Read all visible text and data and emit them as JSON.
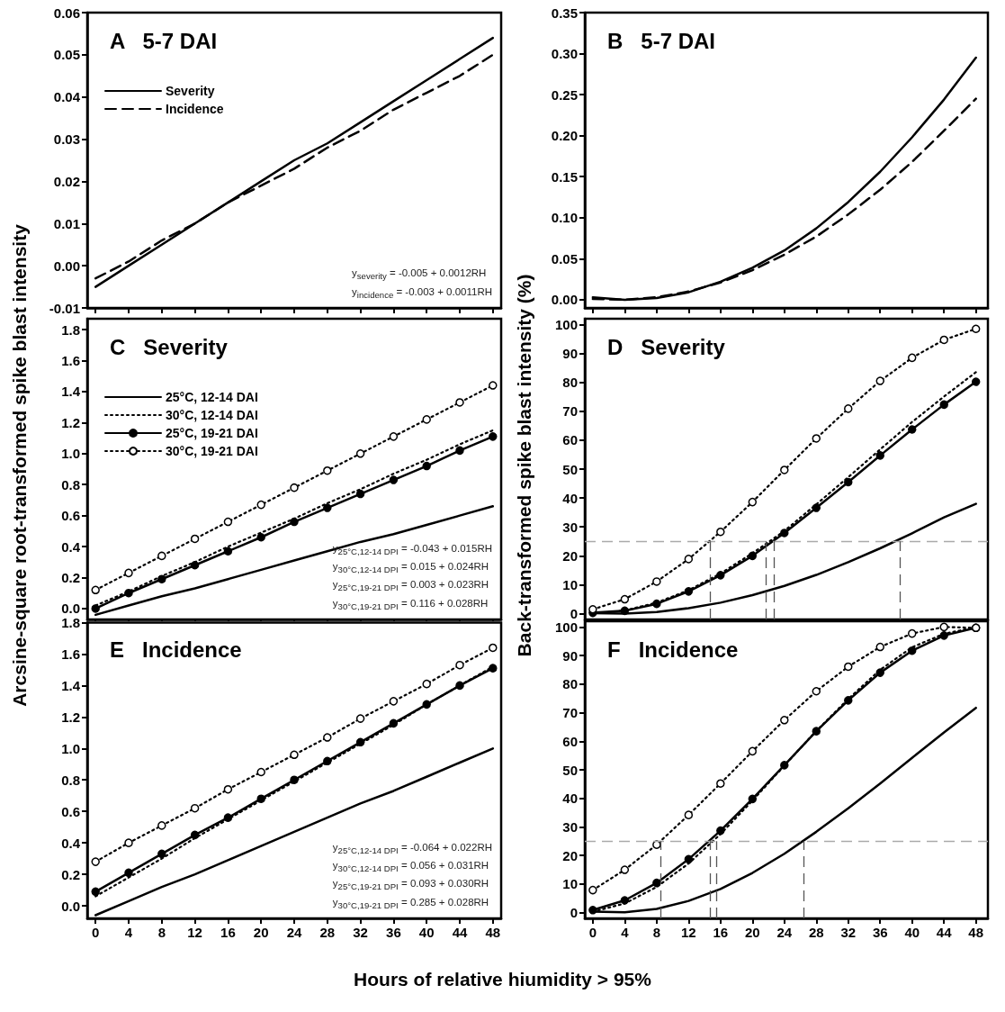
{
  "chart_data": [
    {
      "type": "line",
      "title": "A   5-7 DAI",
      "xlim": [
        -1,
        49
      ],
      "xticks": [
        0,
        4,
        8,
        12,
        16,
        20,
        24,
        28,
        32,
        36,
        40,
        44,
        48
      ],
      "ylim": [
        -0.01,
        0.06
      ],
      "yticks": [
        {
          "value": -0.01,
          "label": "-0.01"
        },
        {
          "value": 0,
          "label": "0.00"
        },
        {
          "value": 0.01,
          "label": "0.01"
        },
        {
          "value": 0.02,
          "label": "0.02"
        },
        {
          "value": 0.03,
          "label": "0.03"
        },
        {
          "value": 0.04,
          "label": "0.04"
        },
        {
          "value": 0.05,
          "label": "0.05"
        },
        {
          "value": 0.06,
          "label": "0.06"
        }
      ],
      "tick_labels": "y",
      "legend": "top left",
      "marker": "none",
      "x": [
        0,
        4,
        8,
        12,
        16,
        20,
        24,
        28,
        32,
        36,
        40,
        44,
        48
      ],
      "series": [
        {
          "name": "Severity",
          "color": "#000000",
          "line_style": "solid",
          "values": [
            -0.005,
            0.0,
            0.005,
            0.01,
            0.015,
            0.02,
            0.025,
            0.029,
            0.034,
            0.039,
            0.044,
            0.049,
            0.054
          ]
        },
        {
          "name": "Incidence",
          "color": "#000000",
          "line_style": "dashed",
          "values": [
            -0.003,
            0.001,
            0.006,
            0.01,
            0.015,
            0.019,
            0.023,
            0.028,
            0.032,
            0.037,
            0.041,
            0.045,
            0.05
          ]
        }
      ],
      "annotations": [
        "y$_{severity}$ = -0.005 + 0.0012RH",
        "y$_{incidence}$ = -0.003 + 0.0011RH"
      ]
    },
    {
      "type": "line",
      "title": "B   5-7 DAI",
      "xlim": [
        -1,
        49.5
      ],
      "xticks": [
        0,
        4,
        8,
        12,
        16,
        20,
        24,
        28,
        32,
        36,
        40,
        44,
        48
      ],
      "ylim": [
        -0.01,
        0.35
      ],
      "yticks": [
        {
          "value": 0,
          "label": "0.00"
        },
        {
          "value": 0.05,
          "label": "0.05"
        },
        {
          "value": 0.1,
          "label": "0.10"
        },
        {
          "value": 0.15,
          "label": "0.15"
        },
        {
          "value": 0.2,
          "label": "0.20"
        },
        {
          "value": 0.25,
          "label": "0.25"
        },
        {
          "value": 0.3,
          "label": "0.30"
        },
        {
          "value": 0.35,
          "label": "0.35"
        }
      ],
      "tick_labels": "y",
      "marker": "none",
      "x": [
        0,
        4,
        8,
        12,
        16,
        20,
        24,
        28,
        32,
        36,
        40,
        44,
        48
      ],
      "series": [
        {
          "color": "#000000",
          "line_style": "solid",
          "values": [
            0.003,
            0.0,
            0.002,
            0.009,
            0.022,
            0.039,
            0.06,
            0.087,
            0.119,
            0.156,
            0.198,
            0.244,
            0.295
          ]
        },
        {
          "color": "#000000",
          "line_style": "dashed",
          "values": [
            0.001,
            0.0,
            0.003,
            0.01,
            0.021,
            0.036,
            0.055,
            0.077,
            0.104,
            0.134,
            0.168,
            0.206,
            0.245
          ]
        }
      ]
    },
    {
      "type": "line",
      "title": "C   Severity",
      "xlim": [
        -1,
        49
      ],
      "xticks": [
        0,
        4,
        8,
        12,
        16,
        20,
        24,
        28,
        32,
        36,
        40,
        44,
        48
      ],
      "ylim": [
        -0.07,
        1.87
      ],
      "yticks": [
        {
          "value": 0,
          "label": "0.0"
        },
        {
          "value": 0.2,
          "label": "0.2"
        },
        {
          "value": 0.4,
          "label": "0.4"
        },
        {
          "value": 0.6,
          "label": "0.6"
        },
        {
          "value": 0.8,
          "label": "0.8"
        },
        {
          "value": 1,
          "label": "1.0"
        },
        {
          "value": 1.2,
          "label": "1.2"
        },
        {
          "value": 1.4,
          "label": "1.4"
        },
        {
          "value": 1.6,
          "label": "1.6"
        },
        {
          "value": 1.8,
          "label": "1.8"
        }
      ],
      "tick_labels": "y",
      "legend": "top left",
      "x": [
        0,
        4,
        8,
        12,
        16,
        20,
        24,
        28,
        32,
        36,
        40,
        44,
        48
      ],
      "ylabel": "Arcsine-square root-transformed spike blast intensity",
      "series": [
        {
          "name": "25°C, 12-14 DAI",
          "color": "#000000",
          "line_style": "solid",
          "marker": "none",
          "values": [
            -0.04,
            0.02,
            0.08,
            0.13,
            0.19,
            0.25,
            0.31,
            0.37,
            0.43,
            0.48,
            0.54,
            0.6,
            0.66
          ]
        },
        {
          "name": "30°C, 12-14 DAI",
          "color": "#000000",
          "line_style": "dotted",
          "marker": "none",
          "values": [
            0.02,
            0.11,
            0.21,
            0.3,
            0.4,
            0.49,
            0.58,
            0.68,
            0.77,
            0.87,
            0.96,
            1.06,
            1.15
          ]
        },
        {
          "name": "25°C, 19-21 DAI",
          "color": "#000000",
          "line_style": "solid",
          "marker": "circle",
          "values": [
            0.0,
            0.1,
            0.19,
            0.28,
            0.37,
            0.46,
            0.56,
            0.65,
            0.74,
            0.83,
            0.92,
            1.02,
            1.11
          ]
        },
        {
          "name": "30°C, 19-21 DAI",
          "color": "#000000",
          "line_style": "dotted",
          "marker": "circle",
          "values": [
            0.12,
            0.23,
            0.34,
            0.45,
            0.56,
            0.67,
            0.78,
            0.89,
            1.0,
            1.11,
            1.22,
            1.33,
            1.44
          ]
        }
      ],
      "annotations": [
        "y$_{25°C,12-14 DPI}$ = -0.043 + 0.015RH",
        "y$_{30°C,12-14 DPI}$ = 0.015 + 0.024RH",
        "y$_{25°C,19-21 DPI}$ = 0.003 + 0.023RH",
        "y$_{30°C,19-21 DPI}$ = 0.116 + 0.028RH"
      ]
    },
    {
      "type": "line",
      "title": "D   Severity",
      "xlim": [
        -1,
        49.5
      ],
      "xticks": [
        0,
        4,
        8,
        12,
        16,
        20,
        24,
        28,
        32,
        36,
        40,
        44,
        48
      ],
      "ylim": [
        -2,
        102
      ],
      "yticks": [
        0,
        10,
        20,
        30,
        40,
        50,
        60,
        70,
        80,
        90,
        100
      ],
      "tick_labels": "y",
      "x": [
        0,
        4,
        8,
        12,
        16,
        20,
        24,
        28,
        32,
        36,
        40,
        44,
        48
      ],
      "ylabel": "Back-transformed spike blast intensity (%)",
      "series": [
        {
          "color": "#000000",
          "line_style": "solid",
          "marker": "none",
          "values": [
            0.2,
            0.0,
            0.6,
            1.9,
            3.8,
            6.4,
            9.6,
            13.4,
            17.8,
            22.6,
            27.8,
            33.3,
            38.0
          ]
        },
        {
          "color": "#000000",
          "line_style": "dotted",
          "marker": "none",
          "values": [
            0.0,
            1.1,
            3.8,
            8.1,
            13.9,
            20.9,
            28.6,
            37.8,
            47.2,
            56.8,
            66.3,
            75.1,
            83.5
          ]
        },
        {
          "color": "#000000",
          "line_style": "solid",
          "marker": "circle",
          "values": [
            0.3,
            1.0,
            3.4,
            7.7,
            13.3,
            20.0,
            27.9,
            36.6,
            45.5,
            54.7,
            63.7,
            72.3,
            80.2
          ]
        },
        {
          "color": "#000000",
          "line_style": "dotted",
          "marker": "circle",
          "values": [
            1.5,
            5.0,
            11.1,
            18.9,
            28.3,
            38.6,
            49.7,
            60.6,
            70.9,
            80.5,
            88.5,
            94.7,
            98.5
          ]
        }
      ],
      "ref_lines": [
        {
          "axis": "y",
          "value": 25,
          "color": "#aaaaaa",
          "line_style": "dashed"
        },
        {
          "axis": "x",
          "value": 14.7,
          "color": "#555555",
          "line_style": "dashed"
        },
        {
          "axis": "x",
          "value": 21.7,
          "color": "#555555",
          "line_style": "dashed"
        },
        {
          "axis": "x",
          "value": 22.7,
          "color": "#555555",
          "line_style": "dashed"
        },
        {
          "axis": "x",
          "value": 38.5,
          "color": "#555555",
          "line_style": "dashed"
        }
      ]
    },
    {
      "type": "line",
      "title": "E   Incidence",
      "xlim": [
        -1,
        49
      ],
      "xticks": [
        0,
        4,
        8,
        12,
        16,
        20,
        24,
        28,
        32,
        36,
        40,
        44,
        48
      ],
      "ylim": [
        -0.08,
        1.8
      ],
      "yticks": [
        {
          "value": 0,
          "label": "0.0"
        },
        {
          "value": 0.2,
          "label": "0.2"
        },
        {
          "value": 0.4,
          "label": "0.4"
        },
        {
          "value": 0.6,
          "label": "0.6"
        },
        {
          "value": 0.8,
          "label": "0.8"
        },
        {
          "value": 1,
          "label": "1.0"
        },
        {
          "value": 1.2,
          "label": "1.2"
        },
        {
          "value": 1.4,
          "label": "1.4"
        },
        {
          "value": 1.6,
          "label": "1.6"
        },
        {
          "value": 1.8,
          "label": "1.8"
        }
      ],
      "x": [
        0,
        4,
        8,
        12,
        16,
        20,
        24,
        28,
        32,
        36,
        40,
        44,
        48
      ],
      "xlabel": "Hours of relative hiumidity > 95%",
      "series": [
        {
          "color": "#000000",
          "line_style": "solid",
          "marker": "none",
          "values": [
            -0.06,
            0.03,
            0.12,
            0.2,
            0.29,
            0.38,
            0.47,
            0.56,
            0.65,
            0.73,
            0.82,
            0.91,
            1.0
          ]
        },
        {
          "color": "#000000",
          "line_style": "dotted",
          "marker": "none",
          "values": [
            0.06,
            0.18,
            0.3,
            0.43,
            0.55,
            0.67,
            0.79,
            0.91,
            1.03,
            1.15,
            1.28,
            1.4,
            1.52
          ]
        },
        {
          "color": "#000000",
          "line_style": "solid",
          "marker": "circle",
          "values": [
            0.09,
            0.21,
            0.33,
            0.45,
            0.56,
            0.68,
            0.8,
            0.92,
            1.04,
            1.16,
            1.28,
            1.4,
            1.51
          ]
        },
        {
          "color": "#000000",
          "line_style": "dotted",
          "marker": "circle",
          "values": [
            0.28,
            0.4,
            0.51,
            0.62,
            0.74,
            0.85,
            0.96,
            1.07,
            1.19,
            1.3,
            1.41,
            1.53,
            1.64
          ]
        }
      ],
      "annotations": [
        "y$_{25°C,12-14 DPI}$ = -0.064 + 0.022RH",
        "y$_{30°C,12-14 DPI}$ = 0.056 + 0.031RH",
        "y$_{25°C,19-21 DPI}$ = 0.093 + 0.030RH",
        "y$_{30°C,19-21 DPI}$ = 0.285 + 0.028RH"
      ]
    },
    {
      "type": "line",
      "title": "F   Incidence",
      "xlim": [
        -1,
        49.5
      ],
      "xticks": [
        0,
        4,
        8,
        12,
        16,
        20,
        24,
        28,
        32,
        36,
        40,
        44,
        48
      ],
      "ylim": [
        -2,
        102
      ],
      "yticks": [
        0,
        10,
        20,
        30,
        40,
        50,
        60,
        70,
        80,
        90,
        100
      ],
      "x": [
        0,
        4,
        8,
        12,
        16,
        20,
        24,
        28,
        32,
        36,
        40,
        44,
        48
      ],
      "series": [
        {
          "color": "#000000",
          "line_style": "solid",
          "marker": "none",
          "values": [
            0.4,
            0.1,
            1.3,
            4.1,
            8.3,
            13.9,
            20.6,
            28.3,
            36.5,
            45.2,
            54.2,
            63.1,
            71.7
          ]
        },
        {
          "color": "#000000",
          "line_style": "dotted",
          "marker": "none",
          "values": [
            0.3,
            3.2,
            9.0,
            17.2,
            27.5,
            39.2,
            51.5,
            63.6,
            74.8,
            85.0,
            92.9,
            97.6,
            99.9
          ]
        },
        {
          "color": "#000000",
          "line_style": "solid",
          "marker": "circle",
          "values": [
            0.9,
            4.3,
            10.4,
            18.7,
            28.7,
            39.8,
            51.6,
            63.5,
            74.3,
            84.0,
            91.7,
            97.0,
            99.7
          ]
        },
        {
          "color": "#000000",
          "line_style": "dotted",
          "marker": "circle",
          "values": [
            7.9,
            15.0,
            23.8,
            34.2,
            45.2,
            56.5,
            67.4,
            77.5,
            86.1,
            93.0,
            97.7,
            100,
            99.7
          ]
        }
      ],
      "ref_lines": [
        {
          "axis": "y",
          "value": 25,
          "color": "#aaaaaa",
          "line_style": "dashed"
        },
        {
          "axis": "x",
          "value": 8.5,
          "color": "#555555",
          "line_style": "dashed"
        },
        {
          "axis": "x",
          "value": 14.7,
          "color": "#555555",
          "line_style": "dashed"
        },
        {
          "axis": "x",
          "value": 15.5,
          "color": "#555555",
          "line_style": "dashed"
        },
        {
          "axis": "x",
          "value": 26.4,
          "color": "#555555",
          "line_style": "dashed"
        }
      ]
    }
  ]
}
